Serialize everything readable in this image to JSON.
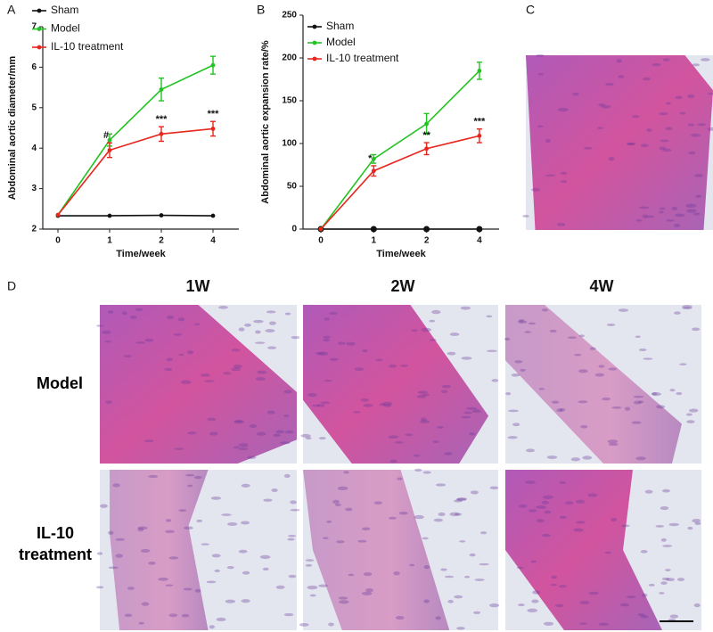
{
  "panel_labels": [
    "A",
    "B",
    "C",
    "D"
  ],
  "histology": {
    "columns": [
      "1W",
      "2W",
      "4W"
    ],
    "rows": [
      "Model",
      "IL-10 treatment"
    ]
  },
  "chart_data": [
    {
      "type": "line",
      "xlabel": "Time/week",
      "ylabel": "Abdominal aortic diameter/mm",
      "categories": [
        "0",
        "1",
        "2",
        "4"
      ],
      "ylim": [
        2,
        7
      ],
      "yticks": [
        2,
        3,
        4,
        5,
        6,
        7
      ],
      "series": [
        {
          "name": "Sham",
          "color": "#111111",
          "values": [
            2.33,
            2.33,
            2.34,
            2.33
          ]
        },
        {
          "name": "Model",
          "color": "#22c322",
          "values": [
            2.35,
            4.2,
            5.45,
            6.05
          ],
          "errors": [
            null,
            0.15,
            0.28,
            0.22
          ]
        },
        {
          "name": "IL-10 treatment",
          "color": "#e8261e",
          "values": [
            2.35,
            3.95,
            4.35,
            4.48
          ],
          "errors": [
            null,
            0.18,
            0.18,
            0.18
          ]
        }
      ],
      "annotations": [
        {
          "text": "#",
          "x": "1"
        },
        {
          "text": "***",
          "x": "2"
        },
        {
          "text": "***",
          "x": "4"
        }
      ]
    },
    {
      "type": "line",
      "xlabel": "Time/week",
      "ylabel": "Abdominal aortic expansion rate/%",
      "categories": [
        "0",
        "1",
        "2",
        "4"
      ],
      "ylim": [
        0,
        250
      ],
      "yticks": [
        0,
        50,
        100,
        150,
        200,
        250
      ],
      "series": [
        {
          "name": "Sham",
          "color": "#111111",
          "values": [
            0,
            0,
            0,
            0
          ]
        },
        {
          "name": "Model",
          "color": "#22c322",
          "values": [
            0,
            82,
            123,
            185
          ],
          "errors": [
            null,
            5,
            12,
            10
          ]
        },
        {
          "name": "IL-10 treatment",
          "color": "#e8261e",
          "values": [
            0,
            68,
            94,
            109
          ],
          "errors": [
            null,
            6,
            7,
            8
          ]
        }
      ],
      "annotations": [
        {
          "text": "*",
          "x": "1"
        },
        {
          "text": "**",
          "x": "2"
        },
        {
          "text": "***",
          "x": "4"
        }
      ]
    }
  ]
}
